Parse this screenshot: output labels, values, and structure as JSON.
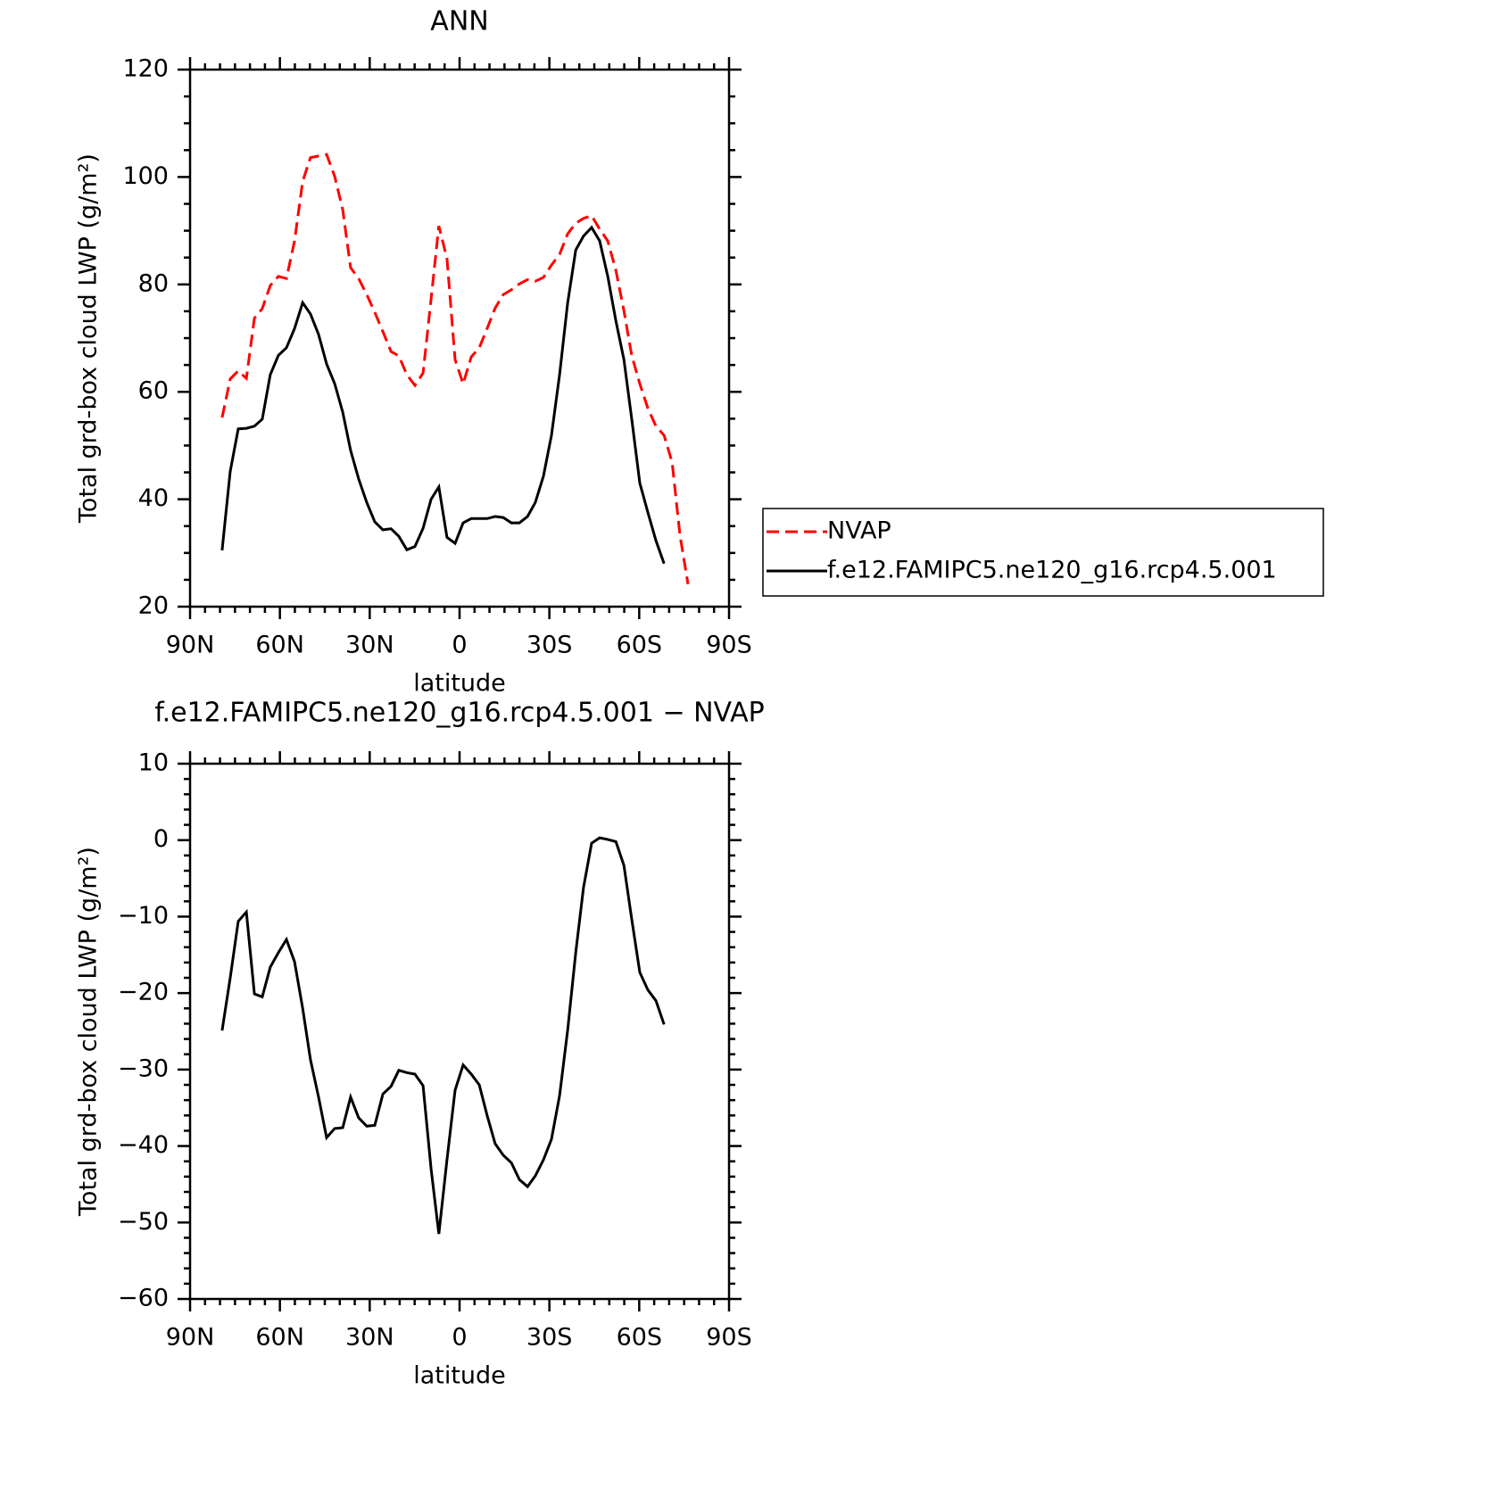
{
  "chart_data": [
    {
      "type": "line",
      "title": "ANN",
      "xlabel": "latitude",
      "ylabel": "Total grd-box cloud LWP (g/m²)",
      "xlim": [
        90,
        -90
      ],
      "ylim": [
        20,
        120
      ],
      "xticks": [
        {
          "value": 90,
          "label": "90N"
        },
        {
          "value": 60,
          "label": "60N"
        },
        {
          "value": 30,
          "label": "30N"
        },
        0,
        {
          "value": -30,
          "label": "30S"
        },
        {
          "value": -60,
          "label": "60S"
        },
        {
          "value": -90,
          "label": "90S"
        }
      ],
      "yticks": [
        20,
        40,
        60,
        80,
        100,
        120
      ],
      "minor_divisions": {
        "x": 6,
        "y": 4
      },
      "legend": "right",
      "series": [
        {
          "name": "NVAP",
          "color": "#ff0000",
          "dash": true,
          "x": [
            79.3,
            76.6,
            73.9,
            71.2,
            68.5,
            65.9,
            63.2,
            60.5,
            57.8,
            55.1,
            52.4,
            49.8,
            47.1,
            44.4,
            41.7,
            39.0,
            36.4,
            33.7,
            31.0,
            28.3,
            25.6,
            22.9,
            20.3,
            17.6,
            14.9,
            12.2,
            9.5,
            6.9,
            4.2,
            1.5,
            -1.2,
            -3.9,
            -6.6,
            -9.2,
            -11.9,
            -14.6,
            -17.3,
            -20.0,
            -22.7,
            -25.3,
            -28.0,
            -30.7,
            -33.4,
            -36.1,
            -38.8,
            -41.4,
            -44.1,
            -46.8,
            -49.5,
            -52.2,
            -54.9,
            -57.5,
            -60.2,
            -62.9,
            -65.6,
            -68.3,
            -71.0,
            -73.6,
            -76.3
          ],
          "values": [
            55.2,
            62.4,
            63.9,
            62.5,
            73.7,
            75.5,
            79.8,
            81.5,
            81.1,
            88.1,
            99.2,
            103.6,
            103.9,
            104.2,
            100.1,
            93.9,
            83.1,
            81.1,
            78.1,
            74.8,
            71.2,
            67.5,
            66.7,
            63.2,
            61.2,
            63.5,
            77.3,
            90.9,
            84.8,
            66.0,
            61.5,
            66.5,
            68.2,
            71.8,
            75.6,
            78.1,
            79.0,
            80.1,
            80.9,
            80.6,
            81.3,
            83.6,
            85.6,
            89.4,
            91.4,
            92.3,
            92.8,
            90.3,
            88.1,
            82.6,
            75.1,
            66.8,
            61.5,
            56.9,
            53.6,
            51.9,
            46.9,
            33.3,
            24.2
          ]
        },
        {
          "name": "f.e12.FAMIPC5.ne120_g16.rcp4.5.001",
          "color": "#000000",
          "dash": false,
          "x": [
            79.3,
            76.6,
            73.9,
            71.2,
            68.5,
            65.9,
            63.2,
            60.5,
            57.8,
            55.1,
            52.4,
            49.8,
            47.1,
            44.4,
            41.7,
            39.0,
            36.4,
            33.7,
            31.0,
            28.3,
            25.6,
            22.9,
            20.3,
            17.6,
            14.9,
            12.2,
            9.5,
            6.9,
            4.2,
            1.5,
            -1.2,
            -3.9,
            -6.6,
            -9.2,
            -11.9,
            -14.6,
            -17.3,
            -20.0,
            -22.7,
            -25.3,
            -28.0,
            -30.7,
            -33.4,
            -36.1,
            -38.8,
            -41.4,
            -44.1,
            -46.8,
            -49.5,
            -52.2,
            -54.9,
            -57.5,
            -60.2,
            -62.9,
            -65.6,
            -68.3
          ],
          "values": [
            30.5,
            45.2,
            53.1,
            53.2,
            53.6,
            54.9,
            63.2,
            66.8,
            68.2,
            71.8,
            76.6,
            74.5,
            70.7,
            65.2,
            61.5,
            56.2,
            49.1,
            43.8,
            39.4,
            35.8,
            34.3,
            34.5,
            33.1,
            30.6,
            31.2,
            34.6,
            40.0,
            42.3,
            32.9,
            31.8,
            35.6,
            36.4,
            36.4,
            36.4,
            36.8,
            36.6,
            35.6,
            35.6,
            36.8,
            39.4,
            44.3,
            51.9,
            63.2,
            76.5,
            86.4,
            89.0,
            90.6,
            88.1,
            81.5,
            73.2,
            66.0,
            55.0,
            43.0,
            37.5,
            32.3,
            28.0
          ]
        }
      ]
    },
    {
      "type": "line",
      "title": "f.e12.FAMIPC5.ne120_g16.rcp4.5.001 − NVAP",
      "xlabel": "latitude",
      "ylabel": "Total grd-box cloud LWP (g/m²)",
      "xlim": [
        90,
        -90
      ],
      "ylim": [
        -60,
        10
      ],
      "xticks": [
        {
          "value": 90,
          "label": "90N"
        },
        {
          "value": 60,
          "label": "60N"
        },
        {
          "value": 30,
          "label": "30N"
        },
        0,
        {
          "value": -30,
          "label": "30S"
        },
        {
          "value": -60,
          "label": "60S"
        },
        {
          "value": -90,
          "label": "90S"
        }
      ],
      "yticks": [
        {
          "value": -60,
          "label": "−60"
        },
        {
          "value": -50,
          "label": "−50"
        },
        {
          "value": -40,
          "label": "−40"
        },
        {
          "value": -30,
          "label": "−30"
        },
        {
          "value": -20,
          "label": "−20"
        },
        {
          "value": -10,
          "label": "−10"
        },
        0,
        10
      ],
      "minor_divisions": {
        "x": 6,
        "y": 5
      },
      "series": [
        {
          "color": "#000000",
          "dash": false,
          "x": [
            79.3,
            76.6,
            73.9,
            71.2,
            68.5,
            65.9,
            63.2,
            60.5,
            57.8,
            55.1,
            52.4,
            49.8,
            47.1,
            44.4,
            41.7,
            39.0,
            36.4,
            33.7,
            31.0,
            28.3,
            25.6,
            22.9,
            20.3,
            17.6,
            14.9,
            12.2,
            9.5,
            6.9,
            4.2,
            1.5,
            -1.2,
            -3.9,
            -6.6,
            -9.2,
            -11.9,
            -14.6,
            -17.3,
            -20.0,
            -22.7,
            -25.3,
            -28.0,
            -30.7,
            -33.4,
            -36.1,
            -38.8,
            -41.4,
            -44.1,
            -46.8,
            -49.5,
            -52.2,
            -54.9,
            -57.5,
            -60.2,
            -62.9,
            -65.6,
            -68.3
          ],
          "values": [
            -24.9,
            -18.0,
            -10.6,
            -9.4,
            -20.1,
            -20.5,
            -16.6,
            -14.7,
            -13.0,
            -15.9,
            -22.0,
            -28.7,
            -33.6,
            -38.9,
            -37.7,
            -37.6,
            -33.6,
            -36.3,
            -37.4,
            -37.3,
            -33.2,
            -32.2,
            -30.1,
            -30.4,
            -30.6,
            -32.1,
            -43.0,
            -51.5,
            -41.8,
            -32.7,
            -29.4,
            -30.6,
            -32.0,
            -36.0,
            -39.7,
            -41.2,
            -42.2,
            -44.4,
            -45.3,
            -43.9,
            -41.8,
            -39.1,
            -33.4,
            -24.9,
            -14.7,
            -6.2,
            -0.4,
            0.3,
            0.1,
            -0.2,
            -3.3,
            -10.3,
            -17.3,
            -19.6,
            -21.0,
            -24.1
          ]
        }
      ]
    }
  ]
}
